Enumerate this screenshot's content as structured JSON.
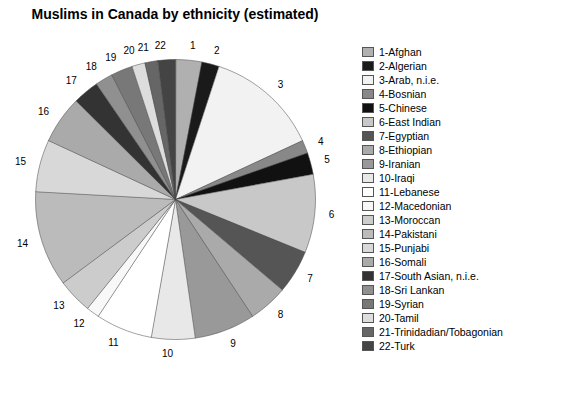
{
  "chart_data": {
    "type": "pie",
    "title": "Muslims in Canada by ethnicity (estimated)",
    "categories": [
      "1-Afghan",
      "2-Algerian",
      "3-Arab, n.i.e.",
      "4-Bosnian",
      "5-Chinese",
      "6-East Indian",
      "7-Egyptian",
      "8-Ethiopian",
      "9-Iranian",
      "10-Iraqi",
      "11-Lebanese",
      "12-Macedonian",
      "13-Moroccan",
      "14-Pakistani",
      "15-Punjabi",
      "16-Somali",
      "17-South Asian, n.i.e.",
      "18-Sri Lankan",
      "19-Syrian",
      "20-Tamil",
      "21-Trinidadian/Tobagonian",
      "22-Turk"
    ],
    "values": [
      3.0,
      2.0,
      13.0,
      1.5,
      2.5,
      9.0,
      5.0,
      4.5,
      7.0,
      5.0,
      6.5,
      1.5,
      4.0,
      11.0,
      6.0,
      5.5,
      3.0,
      2.0,
      2.5,
      1.5,
      1.5,
      2.0
    ],
    "slice_labels": [
      "1",
      "2",
      "3",
      "4",
      "5",
      "6",
      "7",
      "8",
      "9",
      "10",
      "11",
      "12",
      "13",
      "14",
      "15",
      "16",
      "17",
      "18",
      "19",
      "20",
      "21",
      "22"
    ],
    "colors": [
      "#b0b0b0",
      "#1a1a1a",
      "#f2f2f2",
      "#888888",
      "#111111",
      "#c8c8c8",
      "#555555",
      "#aaaaaa",
      "#999999",
      "#e8e8e8",
      "#ffffff",
      "#f8f8f8",
      "#cccccc",
      "#bbbbbb",
      "#d8d8d8",
      "#aaaaaa",
      "#333333",
      "#909090",
      "#787878",
      "#dddddd",
      "#666666",
      "#444444"
    ],
    "legend": "right"
  }
}
